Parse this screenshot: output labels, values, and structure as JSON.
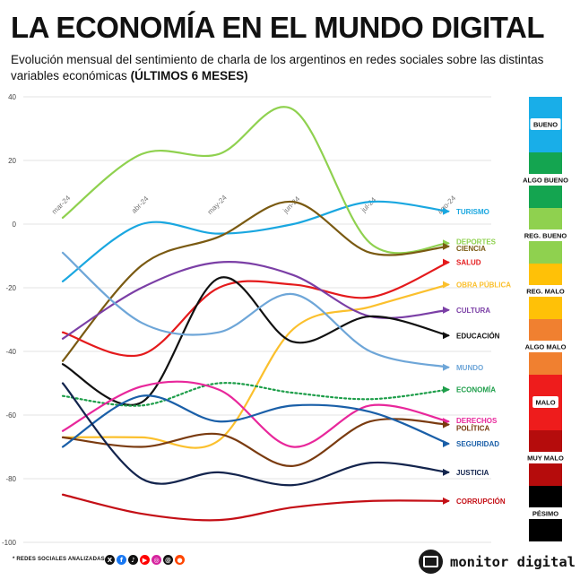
{
  "header": {
    "title": "LA ECONOMÍA EN EL MUNDO DIGITAL",
    "subtitle": "Evolución mensual del sentimiento de charla de los argentinos en redes sociales sobre las distintas variables económicas",
    "subtitle_bold": "(ÚLTIMOS 6 MESES)"
  },
  "footer": {
    "note": "* REDES SOCIALES ANALIZADAS",
    "social_icons": [
      {
        "name": "x-icon",
        "glyph": "X",
        "color": "#111111"
      },
      {
        "name": "facebook-icon",
        "glyph": "f",
        "color": "#1877f2"
      },
      {
        "name": "tiktok-icon",
        "glyph": "♪",
        "color": "#111111"
      },
      {
        "name": "youtube-icon",
        "glyph": "▶",
        "color": "#ff0000"
      },
      {
        "name": "instagram-icon",
        "glyph": "◎",
        "color": "#d6249f"
      },
      {
        "name": "threads-icon",
        "glyph": "@",
        "color": "#111111"
      },
      {
        "name": "reddit-icon",
        "glyph": "●",
        "color": "#ff4500"
      }
    ],
    "brand": "monitor digital"
  },
  "chart_data": {
    "type": "line",
    "categories": [
      "mar-24",
      "abr-24",
      "may-24",
      "jun-24",
      "jul-24",
      "ago-24"
    ],
    "ylim": [
      -100,
      40
    ],
    "yticks": [
      40,
      20,
      0,
      -20,
      -40,
      -60,
      -80,
      -100
    ],
    "grid": true,
    "legend": "right-end labels",
    "series": [
      {
        "name": "TURISMO",
        "color": "#1aa7e0",
        "values": [
          -18,
          0,
          -3,
          0,
          7,
          4
        ]
      },
      {
        "name": "DEPORTES",
        "color": "#8fd14f",
        "values": [
          2,
          22,
          22,
          36,
          -6,
          -6
        ]
      },
      {
        "name": "CIENCIA",
        "color": "#7a5a12",
        "values": [
          -43,
          -13,
          -4,
          7,
          -9,
          -7
        ]
      },
      {
        "name": "SALUD",
        "color": "#e41a1c",
        "values": [
          -34,
          -41,
          -20,
          -19,
          -23,
          -12
        ]
      },
      {
        "name": "OBRA PÚBLICA",
        "color": "#fbc02d",
        "values": [
          -67,
          -67,
          -68,
          -33,
          -26,
          -19
        ]
      },
      {
        "name": "CULTURA",
        "color": "#7b3fa6",
        "values": [
          -36,
          -20,
          -12,
          -16,
          -29,
          -27
        ]
      },
      {
        "name": "EDUCACIÓN",
        "color": "#111111",
        "values": [
          -44,
          -56,
          -17,
          -37,
          -29,
          -35
        ]
      },
      {
        "name": "MUNDO",
        "color": "#6ea6d8",
        "values": [
          -9,
          -31,
          -34,
          -22,
          -40,
          -45
        ]
      },
      {
        "name": "ECONOMÍA",
        "color": "#1e9e4a",
        "values": [
          -54,
          -57,
          -50,
          -53,
          -55,
          -52
        ],
        "dashed": true
      },
      {
        "name": "DERECHOS",
        "color": "#e8279b",
        "values": [
          -65,
          -51,
          -52,
          -70,
          -57,
          -62
        ]
      },
      {
        "name": "POLÍTICA",
        "color": "#7a3b10",
        "values": [
          -67,
          -70,
          -66,
          -76,
          -62,
          -63
        ]
      },
      {
        "name": "SEGURIDAD",
        "color": "#1a5fa8",
        "values": [
          -70,
          -54,
          -62,
          -57,
          -59,
          -69
        ]
      },
      {
        "name": "JUSTICIA",
        "color": "#13244d",
        "values": [
          -50,
          -80,
          -78,
          -82,
          -75,
          -78
        ]
      },
      {
        "name": "CORRUPCIÓN",
        "color": "#c40f16",
        "values": [
          -85,
          -91,
          -93,
          -89,
          -87,
          -87
        ]
      }
    ],
    "scale_bar": [
      {
        "label": "BUENO",
        "color": "#19aee8"
      },
      {
        "label": "ALGO BUENO",
        "color": "#14a550"
      },
      {
        "label": "REG. BUENO",
        "color": "#8fd14f"
      },
      {
        "label": "REG. MALO",
        "color": "#ffc107"
      },
      {
        "label": "ALGO MALO",
        "color": "#f08030"
      },
      {
        "label": "MALO",
        "color": "#ee1c1c"
      },
      {
        "label": "MUY MALO",
        "color": "#b50c0c"
      },
      {
        "label": "PÉSIMO",
        "color": "#000000"
      }
    ]
  }
}
